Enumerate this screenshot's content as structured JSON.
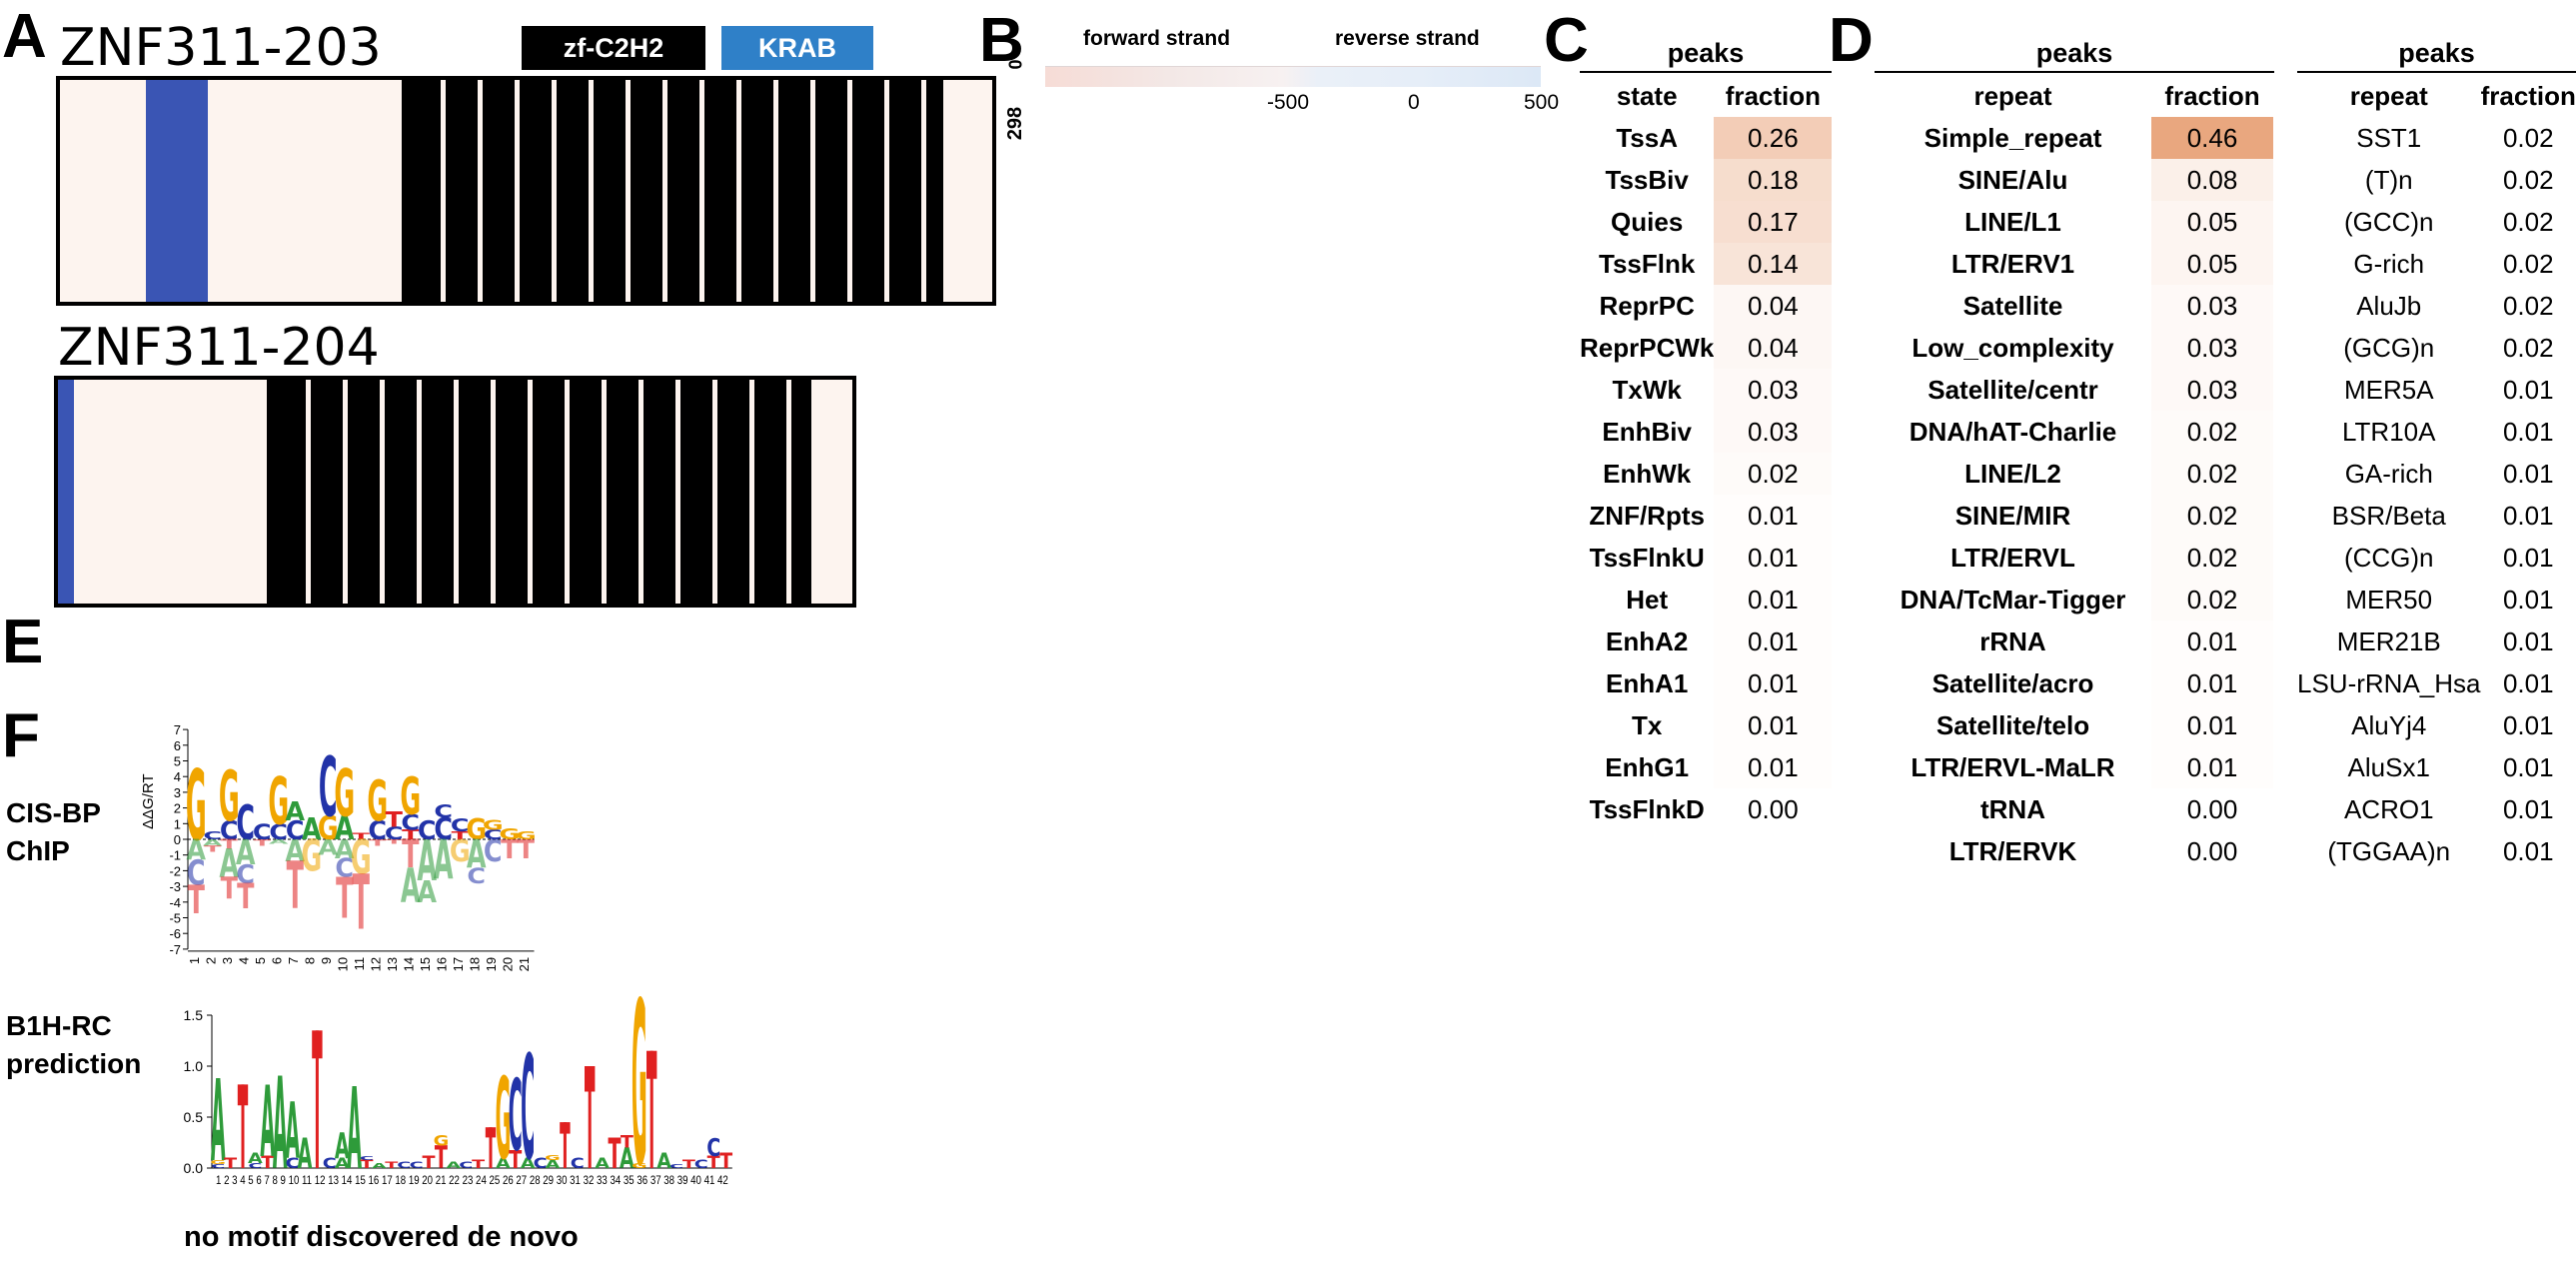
{
  "panels": {
    "A": "A",
    "B": "B",
    "C": "C",
    "D": "D",
    "E": "E",
    "F": "F"
  },
  "panel_a": {
    "iso1": "ZNF311-203",
    "iso2": "ZNF311-204",
    "legend": [
      {
        "label": "zf-C2H2",
        "color": "#000000"
      },
      {
        "label": "KRAB",
        "color": "#2f80c8"
      }
    ],
    "colors": {
      "track_bg": "#fdf4ef",
      "zf": "#000000",
      "krab": "#3a55b4"
    }
  },
  "panel_b": {
    "forward_label": "forward strand",
    "reverse_label": "reverse strand",
    "y_top": "0",
    "y_bottom": "298",
    "x_ticks": [
      "-500",
      "0",
      "500"
    ]
  },
  "table_c": {
    "header_group": "peaks",
    "col1": "state",
    "col2": "fraction",
    "rows": [
      {
        "name": "TssA",
        "value": "0.26"
      },
      {
        "name": "TssBiv",
        "value": "0.18"
      },
      {
        "name": "Quies",
        "value": "0.17"
      },
      {
        "name": "TssFlnk",
        "value": "0.14"
      },
      {
        "name": "ReprPC",
        "value": "0.04"
      },
      {
        "name": "ReprPCWk",
        "value": "0.04"
      },
      {
        "name": "TxWk",
        "value": "0.03"
      },
      {
        "name": "EnhBiv",
        "value": "0.03"
      },
      {
        "name": "EnhWk",
        "value": "0.02"
      },
      {
        "name": "ZNF/Rpts",
        "value": "0.01"
      },
      {
        "name": "TssFlnkU",
        "value": "0.01"
      },
      {
        "name": "Het",
        "value": "0.01"
      },
      {
        "name": "EnhA2",
        "value": "0.01"
      },
      {
        "name": "EnhA1",
        "value": "0.01"
      },
      {
        "name": "Tx",
        "value": "0.01"
      },
      {
        "name": "EnhG1",
        "value": "0.01"
      },
      {
        "name": "TssFlnkD",
        "value": "0.00"
      }
    ]
  },
  "table_d1": {
    "header_group": "peaks",
    "col1": "repeat",
    "col2": "fraction",
    "rows": [
      {
        "name": "Simple_repeat",
        "value": "0.46"
      },
      {
        "name": "SINE/Alu",
        "value": "0.08"
      },
      {
        "name": "LINE/L1",
        "value": "0.05"
      },
      {
        "name": "LTR/ERV1",
        "value": "0.05"
      },
      {
        "name": "Satellite",
        "value": "0.03"
      },
      {
        "name": "Low_complexity",
        "value": "0.03"
      },
      {
        "name": "Satellite/centr",
        "value": "0.03"
      },
      {
        "name": "DNA/hAT-Charlie",
        "value": "0.02"
      },
      {
        "name": "LINE/L2",
        "value": "0.02"
      },
      {
        "name": "SINE/MIR",
        "value": "0.02"
      },
      {
        "name": "LTR/ERVL",
        "value": "0.02"
      },
      {
        "name": "DNA/TcMar-Tigger",
        "value": "0.02"
      },
      {
        "name": "rRNA",
        "value": "0.01"
      },
      {
        "name": "Satellite/acro",
        "value": "0.01"
      },
      {
        "name": "Satellite/telo",
        "value": "0.01"
      },
      {
        "name": "LTR/ERVL-MaLR",
        "value": "0.01"
      },
      {
        "name": "tRNA",
        "value": "0.00"
      },
      {
        "name": "LTR/ERVK",
        "value": "0.00"
      }
    ]
  },
  "table_d2": {
    "header_group": "peaks",
    "col1": "repeat",
    "col2": "fraction",
    "rows": [
      {
        "name": "SST1",
        "value": "0.02"
      },
      {
        "name": "(T)n",
        "value": "0.02"
      },
      {
        "name": "(GCC)n",
        "value": "0.02"
      },
      {
        "name": "G-rich",
        "value": "0.02"
      },
      {
        "name": "AluJb",
        "value": "0.02"
      },
      {
        "name": "(GCG)n",
        "value": "0.02"
      },
      {
        "name": "MER5A",
        "value": "0.01"
      },
      {
        "name": "LTR10A",
        "value": "0.01"
      },
      {
        "name": "GA-rich",
        "value": "0.01"
      },
      {
        "name": "BSR/Beta",
        "value": "0.01"
      },
      {
        "name": "(CCG)n",
        "value": "0.01"
      },
      {
        "name": "MER50",
        "value": "0.01"
      },
      {
        "name": "MER21B",
        "value": "0.01"
      },
      {
        "name": "LSU-rRNA_Hsa",
        "value": "0.01"
      },
      {
        "name": "AluYj4",
        "value": "0.01"
      },
      {
        "name": "AluSx1",
        "value": "0.01"
      },
      {
        "name": "ACRO1",
        "value": "0.01"
      },
      {
        "name": "(TGGAA)n",
        "value": "0.01"
      }
    ]
  },
  "panel_f": {
    "cisbp_label_1": "CIS-BP",
    "cisbp_label_2": "ChIP",
    "b1h_label_1": "B1H-RC",
    "b1h_label_2": "prediction",
    "cisbp_ylabel": "ΔΔG/RT",
    "cisbp_yticks": [
      "7",
      "6",
      "5",
      "4",
      "3",
      "2",
      "1",
      "0",
      "-1",
      "-2",
      "-3",
      "-4",
      "-5",
      "-6",
      "-7"
    ],
    "cisbp_xticks": [
      "1",
      "2",
      "3",
      "4",
      "5",
      "6",
      "7",
      "8",
      "9",
      "10",
      "11",
      "12",
      "13",
      "14",
      "15",
      "16",
      "17",
      "18",
      "19",
      "20",
      "21"
    ],
    "b1h_yticks": [
      "1.5",
      "1.0",
      "0.5",
      "0.0"
    ],
    "b1h_xticks": "1 2 3 4 5 6 7 8 9 10 11 12 13 14 15 16 17 18 19 20 21 22 23 24 25 26 27 28 29 30 31 32 33 34 35 36 37 38 39 40 41 42",
    "footer": "no motif discovered de novo"
  },
  "colors": {
    "heat_max": "#e9a77f",
    "base_A": "#2e9b3a",
    "base_C": "#2233a8",
    "base_G": "#f0a500",
    "base_T": "#e02020"
  }
}
